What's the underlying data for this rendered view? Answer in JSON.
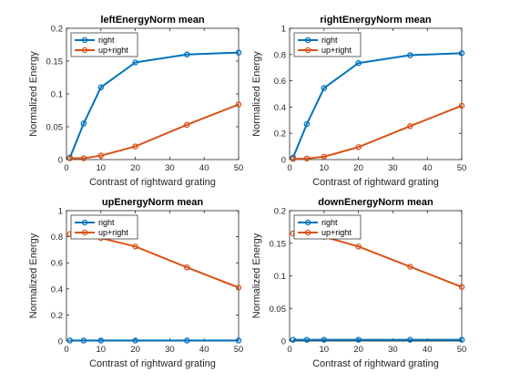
{
  "chart_data": [
    {
      "type": "line",
      "title": "leftEnergyNorm mean",
      "xlabel": "Contrast of rightward grating",
      "ylabel": "Normalized Energy",
      "xlim": [
        0,
        50
      ],
      "ylim": [
        0,
        0.2
      ],
      "xticks": [
        "0",
        "10",
        "20",
        "30",
        "40",
        "50"
      ],
      "yticks": [
        "0",
        "0.05",
        "0.1",
        "0.15",
        "0.2"
      ],
      "x": [
        1,
        5,
        10,
        20,
        35,
        50
      ],
      "legend_position": "top-left",
      "series": [
        {
          "name": "right",
          "color": "#0072BD",
          "values": [
            0.003,
            0.055,
            0.11,
            0.148,
            0.16,
            0.163
          ]
        },
        {
          "name": "up+right",
          "color": "#D95319",
          "values": [
            0.002,
            0.002,
            0.006,
            0.02,
            0.053,
            0.084
          ]
        }
      ]
    },
    {
      "type": "line",
      "title": "rightEnergyNorm mean",
      "xlabel": "Contrast of rightward grating",
      "ylabel": "Normalized Energy",
      "xlim": [
        0,
        50
      ],
      "ylim": [
        0,
        1
      ],
      "xticks": [
        "0",
        "10",
        "20",
        "30",
        "40",
        "50"
      ],
      "yticks": [
        "0",
        "0.2",
        "0.4",
        "0.6",
        "0.8",
        "1"
      ],
      "x": [
        1,
        5,
        10,
        20,
        35,
        50
      ],
      "legend_position": "top-left",
      "series": [
        {
          "name": "right",
          "color": "#0072BD",
          "values": [
            0.015,
            0.27,
            0.545,
            0.735,
            0.795,
            0.81
          ]
        },
        {
          "name": "up+right",
          "color": "#D95319",
          "values": [
            0.005,
            0.008,
            0.022,
            0.095,
            0.255,
            0.41
          ]
        }
      ]
    },
    {
      "type": "line",
      "title": "upEnergyNorm mean",
      "xlabel": "Contrast of rightward grating",
      "ylabel": "Normalized Energy",
      "xlim": [
        0,
        50
      ],
      "ylim": [
        0,
        1
      ],
      "xticks": [
        "0",
        "10",
        "20",
        "30",
        "40",
        "50"
      ],
      "yticks": [
        "0",
        "0.2",
        "0.4",
        "0.6",
        "0.8",
        "1"
      ],
      "x": [
        1,
        5,
        10,
        20,
        35,
        50
      ],
      "legend_position": "top-left",
      "series": [
        {
          "name": "right",
          "color": "#0072BD",
          "values": [
            0.004,
            0.004,
            0.004,
            0.004,
            0.004,
            0.004
          ]
        },
        {
          "name": "up+right",
          "color": "#D95319",
          "values": [
            0.82,
            0.81,
            0.79,
            0.725,
            0.565,
            0.41
          ]
        }
      ]
    },
    {
      "type": "line",
      "title": "downEnergyNorm mean",
      "xlabel": "Contrast of rightward grating",
      "ylabel": "Normalized Energy",
      "xlim": [
        0,
        50
      ],
      "ylim": [
        0,
        0.2
      ],
      "xticks": [
        "0",
        "10",
        "20",
        "30",
        "40",
        "50"
      ],
      "yticks": [
        "0",
        "0.05",
        "0.1",
        "0.15",
        "0.2"
      ],
      "x": [
        1,
        5,
        10,
        20,
        35,
        50
      ],
      "legend_position": "top-left",
      "series": [
        {
          "name": "right",
          "color": "#0072BD",
          "values": [
            0.002,
            0.002,
            0.002,
            0.002,
            0.002,
            0.002
          ]
        },
        {
          "name": "up+right",
          "color": "#D95319",
          "values": [
            0.165,
            0.163,
            0.16,
            0.145,
            0.114,
            0.083
          ]
        }
      ]
    }
  ]
}
